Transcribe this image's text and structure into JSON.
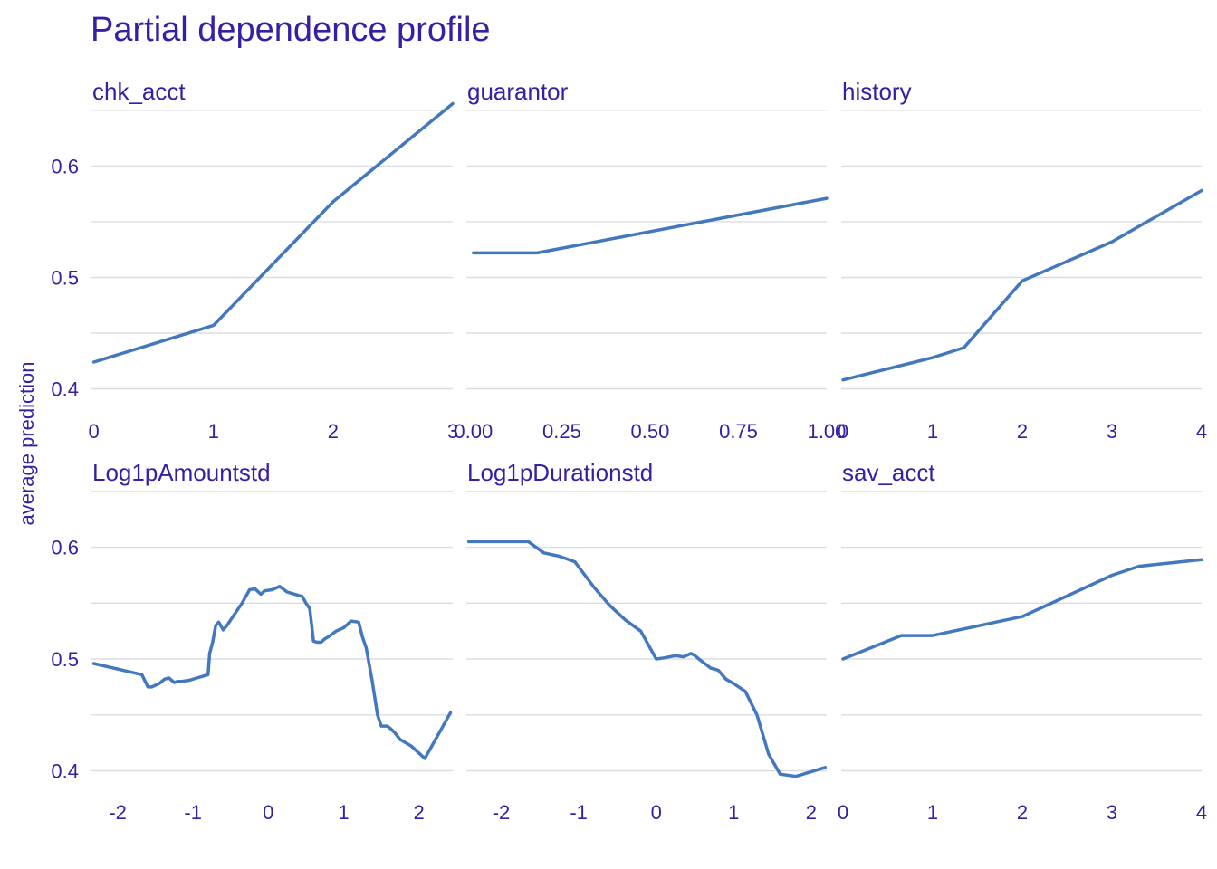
{
  "chart_data": {
    "type": "line",
    "title": "Partial dependence profile",
    "ylabel": "average prediction",
    "colors": {
      "line": "#4378bf",
      "text": "#371ea3",
      "grid": "#dcdde3"
    },
    "y_ticks": [
      "0.4",
      "0.5",
      "0.6"
    ],
    "y_tick_values": [
      0.4,
      0.5,
      0.6
    ],
    "grid": true,
    "panels": [
      {
        "name": "chk_acct",
        "xlim": [
          -0.02,
          3.0
        ],
        "ylim": [
          0.385,
          0.658
        ],
        "x_ticks": [
          0,
          1,
          2,
          3
        ],
        "x_tick_labels": [
          "0",
          "1",
          "2",
          "3"
        ],
        "x": [
          0,
          1,
          2,
          3
        ],
        "y": [
          0.424,
          0.457,
          0.568,
          0.656
        ]
      },
      {
        "name": "guarantor",
        "xlim": [
          -0.02,
          1.0
        ],
        "ylim": [
          0.385,
          0.658
        ],
        "x_ticks": [
          0,
          0.25,
          0.5,
          0.75,
          1
        ],
        "x_tick_labels": [
          "0.00",
          "0.25",
          "0.50",
          "0.75",
          "1.00"
        ],
        "x": [
          0,
          0.18,
          1.0
        ],
        "y": [
          0.522,
          0.522,
          0.571
        ]
      },
      {
        "name": "history",
        "xlim": [
          -0.02,
          4.0
        ],
        "ylim": [
          0.385,
          0.658
        ],
        "x_ticks": [
          0,
          1,
          2,
          3,
          4
        ],
        "x_tick_labels": [
          "0",
          "1",
          "2",
          "3",
          "4"
        ],
        "x": [
          0,
          1,
          1.35,
          2,
          3,
          4
        ],
        "y": [
          0.408,
          0.428,
          0.437,
          0.497,
          0.532,
          0.578
        ]
      },
      {
        "name": "Log1pAmountstd",
        "xlim": [
          -2.35,
          2.45
        ],
        "ylim": [
          0.385,
          0.658
        ],
        "x_ticks": [
          -2,
          -1,
          0,
          1,
          2
        ],
        "x_tick_labels": [
          "-2",
          "-1",
          "0",
          "1",
          "2"
        ],
        "x": [
          -2.32,
          -1.68,
          -1.6,
          -1.55,
          -1.45,
          -1.38,
          -1.32,
          -1.25,
          -1.2,
          -1.15,
          -1.05,
          -0.95,
          -0.85,
          -0.8,
          -0.78,
          -0.74,
          -0.7,
          -0.66,
          -0.6,
          -0.55,
          -0.45,
          -0.35,
          -0.25,
          -0.18,
          -0.1,
          -0.05,
          0.05,
          0.15,
          0.25,
          0.35,
          0.45,
          0.5,
          0.55,
          0.6,
          0.65,
          0.7,
          0.75,
          0.8,
          0.9,
          1.0,
          1.1,
          1.2,
          1.25,
          1.3,
          1.38,
          1.45,
          1.5,
          1.58,
          1.62,
          1.68,
          1.75,
          1.9,
          2.08,
          2.42
        ],
        "y": [
          0.496,
          0.486,
          0.475,
          0.475,
          0.478,
          0.482,
          0.483,
          0.479,
          0.48,
          0.48,
          0.481,
          0.483,
          0.485,
          0.486,
          0.505,
          0.515,
          0.53,
          0.533,
          0.526,
          0.53,
          0.54,
          0.55,
          0.562,
          0.563,
          0.558,
          0.561,
          0.562,
          0.565,
          0.56,
          0.558,
          0.556,
          0.55,
          0.545,
          0.516,
          0.515,
          0.515,
          0.518,
          0.52,
          0.525,
          0.528,
          0.534,
          0.533,
          0.52,
          0.51,
          0.48,
          0.45,
          0.44,
          0.44,
          0.438,
          0.434,
          0.428,
          0.422,
          0.411,
          0.452
        ]
      },
      {
        "name": "Log1pDurationstd",
        "xlim": [
          -2.45,
          2.2
        ],
        "ylim": [
          0.385,
          0.658
        ],
        "x_ticks": [
          -2,
          -1,
          0,
          1,
          2
        ],
        "x_tick_labels": [
          "-2",
          "-1",
          "0",
          "1",
          "2"
        ],
        "x": [
          -2.42,
          -2.0,
          -1.65,
          -1.45,
          -1.25,
          -1.05,
          -0.8,
          -0.6,
          -0.4,
          -0.2,
          0.0,
          0.1,
          0.25,
          0.35,
          0.45,
          0.5,
          0.55,
          0.7,
          0.8,
          0.9,
          1.0,
          1.15,
          1.3,
          1.45,
          1.6,
          1.8,
          2.18
        ],
        "y": [
          0.605,
          0.605,
          0.605,
          0.595,
          0.592,
          0.587,
          0.564,
          0.548,
          0.535,
          0.525,
          0.5,
          0.501,
          0.503,
          0.502,
          0.505,
          0.503,
          0.5,
          0.492,
          0.49,
          0.482,
          0.478,
          0.471,
          0.45,
          0.415,
          0.397,
          0.395,
          0.403
        ]
      },
      {
        "name": "sav_acct",
        "xlim": [
          -0.02,
          4.0
        ],
        "ylim": [
          0.385,
          0.658
        ],
        "x_ticks": [
          0,
          1,
          2,
          3,
          4
        ],
        "x_tick_labels": [
          "0",
          "1",
          "2",
          "3",
          "4"
        ],
        "x": [
          0,
          0.65,
          1,
          2,
          3,
          3.3,
          4
        ],
        "y": [
          0.5,
          0.521,
          0.521,
          0.538,
          0.575,
          0.583,
          0.589
        ]
      }
    ]
  },
  "panel_labels": [
    "chk_acct",
    "guarantor",
    "history",
    "Log1pAmountstd",
    "Log1pDurationstd",
    "sav_acct"
  ]
}
